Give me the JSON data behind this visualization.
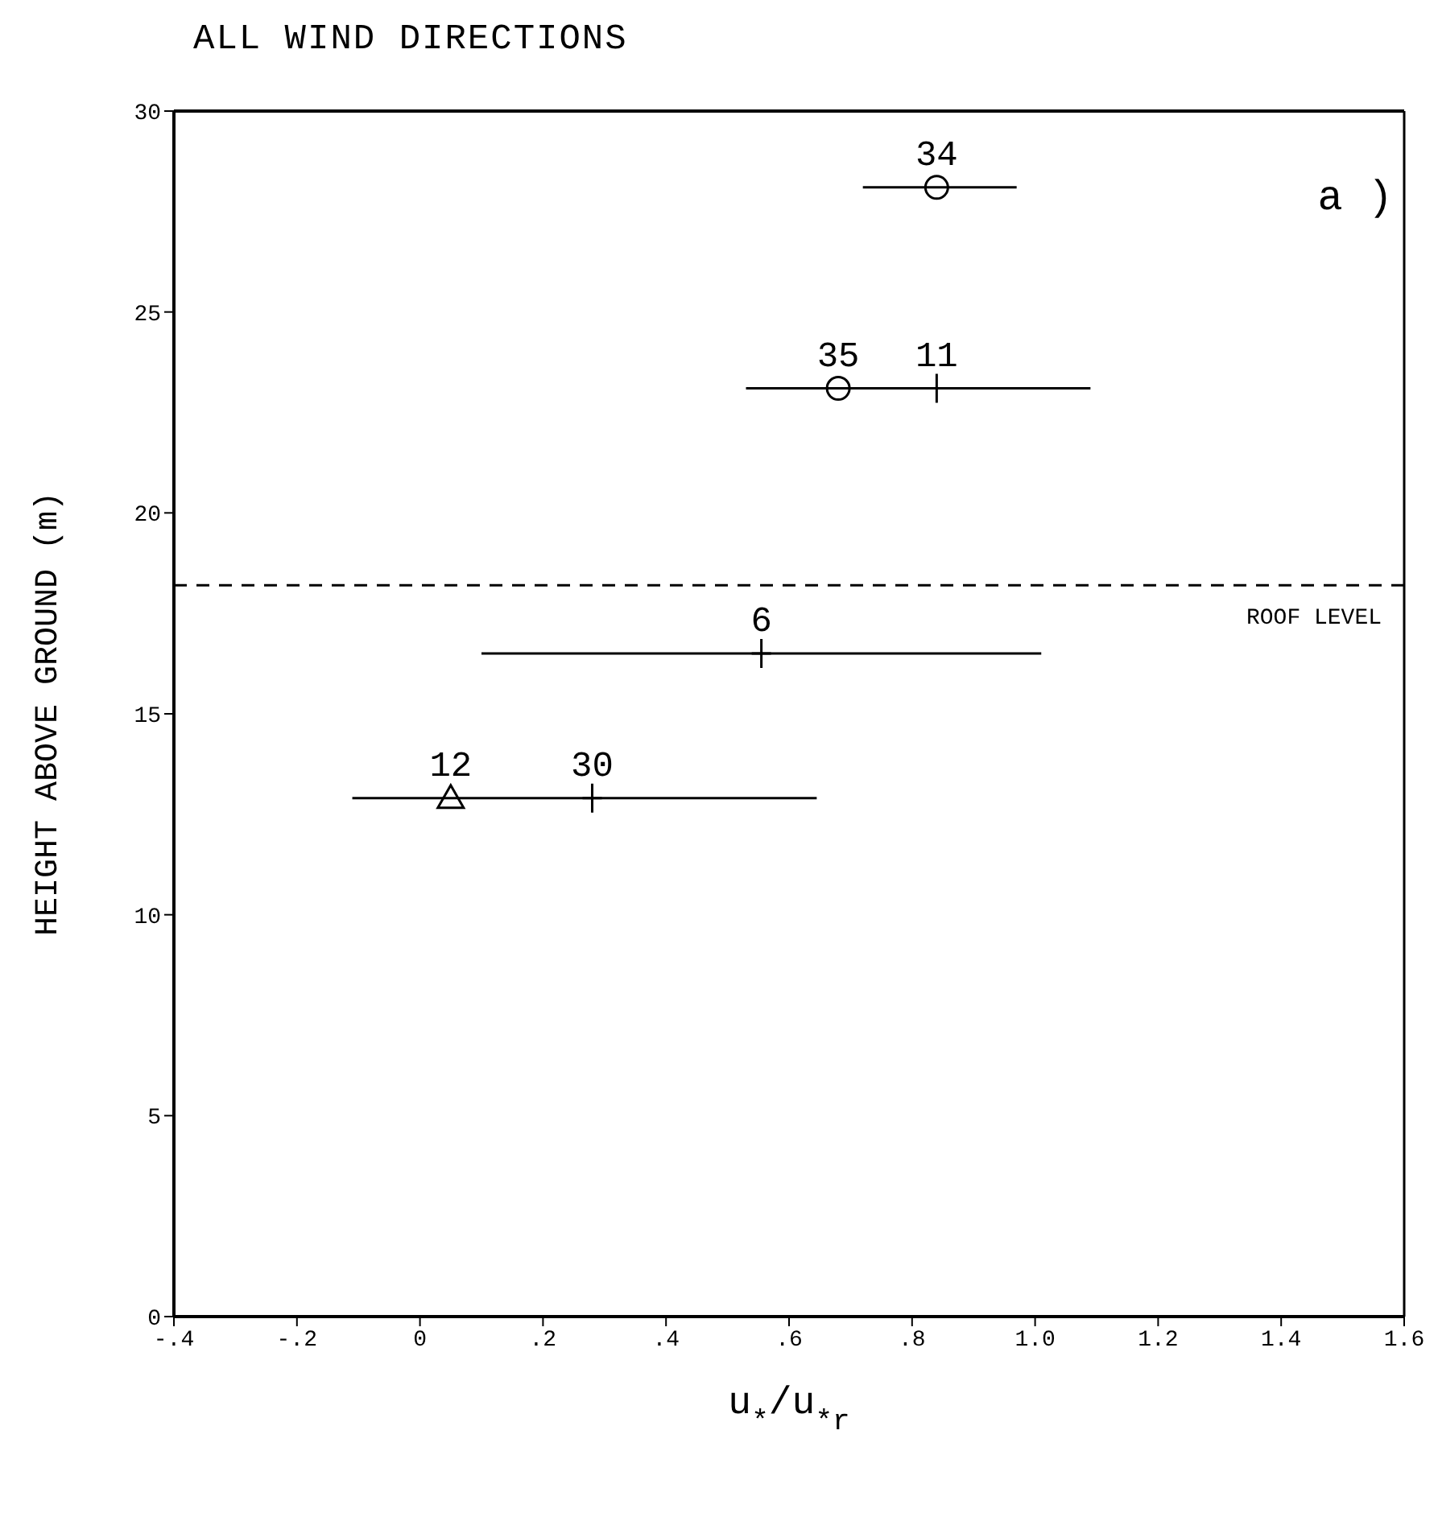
{
  "chart_data": {
    "type": "scatter",
    "title": "ALL WIND DIRECTIONS",
    "xlabel": "u$_{*}$/u$_{*r}$",
    "ylabel": "HEIGHT ABOVE GROUND (m)",
    "series": [
      {
        "color": "#000000",
        "marker": "circle",
        "x": [
          0.84,
          0.68
        ],
        "values": [
          28.1,
          23.1
        ],
        "xerrors": [
          [
            0.72,
            0.97
          ],
          null
        ]
      },
      {
        "color": "#000000",
        "marker": "cross",
        "x": [
          0.84,
          0.555,
          0.28
        ],
        "values": [
          23.1,
          16.5,
          12.9
        ],
        "xerrors": [
          [
            0.53,
            1.09
          ],
          [
            0.1,
            1.01
          ],
          [
            -0.11,
            0.645
          ]
        ]
      },
      {
        "color": "#000000",
        "marker": "triangle",
        "x": [
          0.05
        ],
        "values": [
          12.9
        ]
      }
    ],
    "annotations": [
      {
        "text": "34",
        "x": 0.84,
        "y": 28.1
      },
      {
        "text": "35",
        "x": 0.68,
        "y": 23.1
      },
      {
        "text": "11",
        "x": 0.84,
        "y": 23.1
      },
      {
        "text": "6",
        "x": 0.555,
        "y": 16.5
      },
      {
        "text": "30",
        "x": 0.28,
        "y": 12.9
      },
      {
        "text": "12",
        "x": 0.05,
        "y": 12.9
      },
      "a )"
    ],
    "ref_lines": [
      {
        "axis": "y",
        "value": 18.2,
        "label": "ROOF LEVEL",
        "line_style": "dashed",
        "color": "#000000"
      }
    ],
    "xlim": [
      -0.4,
      1.6
    ],
    "xticks": [
      {
        "value": -0.4,
        "label": "-.4"
      },
      {
        "value": -0.2,
        "label": "-.2"
      },
      0,
      {
        "value": 0.2,
        "label": ".2"
      },
      {
        "value": 0.4,
        "label": ".4"
      },
      {
        "value": 0.6,
        "label": ".6"
      },
      {
        "value": 0.8,
        "label": ".8"
      },
      {
        "value": 1.0,
        "label": "1.0"
      },
      {
        "value": 1.2,
        "label": "1.2"
      },
      {
        "value": 1.4,
        "label": "1.4"
      },
      {
        "value": 1.6,
        "label": "1.6"
      }
    ],
    "ylim": [
      0,
      30
    ],
    "yticks": [
      0,
      5,
      10,
      15,
      20,
      25,
      30
    ],
    "grid": false
  }
}
